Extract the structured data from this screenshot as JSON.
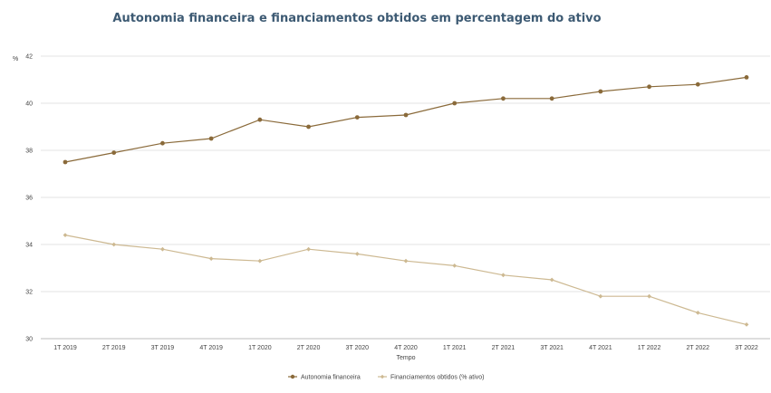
{
  "chart_data": {
    "type": "line",
    "title": "Autonomia financeira e financiamentos obtidos em percentagem do ativo",
    "xlabel": "Tempo",
    "ylabel": "%",
    "ylim": [
      30,
      42
    ],
    "yticks": [
      "30",
      "32",
      "34",
      "36",
      "38",
      "40",
      "42"
    ],
    "grid": true,
    "legend_position": "bottom-center",
    "categories": [
      "1T 2019",
      "2T 2019",
      "3T 2019",
      "4T 2019",
      "1T 2020",
      "2T 2020",
      "3T 2020",
      "4T 2020",
      "1T 2021",
      "2T 2021",
      "3T 2021",
      "4T 2021",
      "1T 2022",
      "2T 2022",
      "3T 2022"
    ],
    "series": [
      {
        "name": "Autonomia financeira",
        "color": "#8a6a3a",
        "marker": "circle",
        "values": [
          37.5,
          37.9,
          38.3,
          38.5,
          39.3,
          39.0,
          39.4,
          39.5,
          40.0,
          40.2,
          40.2,
          40.5,
          40.7,
          40.8,
          41.1
        ]
      },
      {
        "name": "Financiamentos obtidos (% ativo)",
        "color": "#cdb992",
        "marker": "diamond",
        "values": [
          34.4,
          34.0,
          33.8,
          33.4,
          33.3,
          33.8,
          33.6,
          33.3,
          33.1,
          32.7,
          32.5,
          31.8,
          31.8,
          31.1,
          30.6
        ]
      }
    ]
  }
}
